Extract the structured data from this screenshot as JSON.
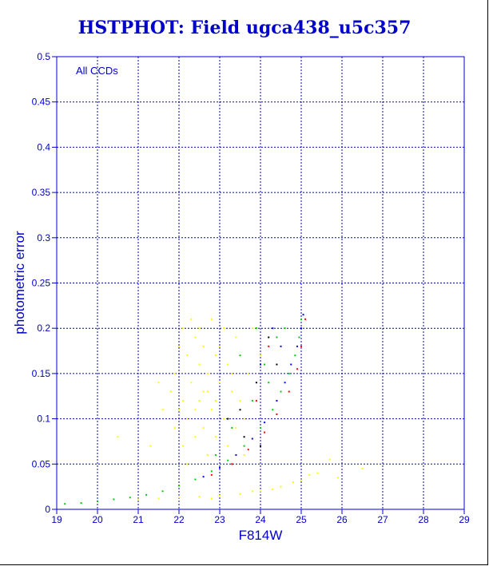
{
  "chart_data": {
    "type": "scatter",
    "title": "HSTPHOT: Field ugca438_u5c357",
    "xlabel": "F814W",
    "ylabel": "photometric error",
    "annotation": "All CCDs",
    "xlim": [
      19,
      29
    ],
    "ylim": [
      0,
      0.5
    ],
    "xticks": [
      "19",
      "20",
      "21",
      "22",
      "23",
      "24",
      "25",
      "26",
      "27",
      "28",
      "29"
    ],
    "yticks": [
      "0",
      "0.05",
      "0.1",
      "0.15",
      "0.2",
      "0.25",
      "0.3",
      "0.35",
      "0.4",
      "0.45",
      "0.5"
    ],
    "grid": true,
    "series": [
      {
        "color": "#ffff00",
        "points": [
          [
            22.1,
            0.2
          ],
          [
            22.4,
            0.19
          ],
          [
            22.8,
            0.21
          ],
          [
            23.1,
            0.2
          ],
          [
            23.4,
            0.19
          ],
          [
            22.6,
            0.18
          ],
          [
            22.2,
            0.17
          ],
          [
            22.9,
            0.17
          ],
          [
            23.2,
            0.16
          ],
          [
            22.5,
            0.16
          ],
          [
            21.9,
            0.15
          ],
          [
            22.7,
            0.15
          ],
          [
            23.0,
            0.14
          ],
          [
            22.3,
            0.14
          ],
          [
            22.6,
            0.13
          ],
          [
            23.3,
            0.13
          ],
          [
            21.8,
            0.13
          ],
          [
            22.1,
            0.12
          ],
          [
            22.9,
            0.12
          ],
          [
            23.5,
            0.12
          ],
          [
            22.4,
            0.11
          ],
          [
            22.8,
            0.11
          ],
          [
            21.6,
            0.11
          ],
          [
            23.1,
            0.1
          ],
          [
            22.2,
            0.1
          ],
          [
            22.6,
            0.09
          ],
          [
            23.4,
            0.09
          ],
          [
            21.9,
            0.09
          ],
          [
            22.9,
            0.08
          ],
          [
            22.4,
            0.08
          ],
          [
            23.2,
            0.07
          ],
          [
            22.1,
            0.07
          ],
          [
            22.7,
            0.06
          ],
          [
            23.6,
            0.1
          ],
          [
            23.7,
            0.15
          ],
          [
            21.5,
            0.14
          ],
          [
            21.3,
            0.07
          ],
          [
            20.5,
            0.08
          ],
          [
            24.0,
            0.17
          ],
          [
            23.8,
            0.2
          ],
          [
            22.5,
            0.2
          ],
          [
            22.0,
            0.18
          ],
          [
            23.0,
            0.18
          ],
          [
            22.3,
            0.21
          ],
          [
            22.7,
            0.13
          ],
          [
            23.3,
            0.15
          ],
          [
            22.0,
            0.11
          ],
          [
            22.5,
            0.12
          ],
          [
            23.6,
            0.06
          ],
          [
            22.2,
            0.05
          ],
          [
            21.0,
            0.011
          ],
          [
            21.5,
            0.012
          ],
          [
            22.0,
            0.013
          ],
          [
            22.5,
            0.014
          ],
          [
            23.0,
            0.015
          ],
          [
            23.5,
            0.017
          ],
          [
            24.0,
            0.02
          ],
          [
            24.5,
            0.025
          ],
          [
            25.0,
            0.032
          ],
          [
            25.4,
            0.04
          ],
          [
            25.7,
            0.055
          ],
          [
            22.8,
            0.012
          ],
          [
            23.8,
            0.02
          ],
          [
            24.3,
            0.022
          ],
          [
            24.8,
            0.03
          ],
          [
            25.2,
            0.038
          ],
          [
            26.5,
            0.045
          ],
          [
            25.9,
            0.035
          ]
        ]
      },
      {
        "color": "#00cc00",
        "points": [
          [
            19.2,
            0.006
          ],
          [
            19.6,
            0.007
          ],
          [
            20.0,
            0.009
          ],
          [
            20.4,
            0.011
          ],
          [
            20.8,
            0.013
          ],
          [
            21.2,
            0.016
          ],
          [
            21.6,
            0.02
          ],
          [
            22.0,
            0.026
          ],
          [
            22.4,
            0.033
          ],
          [
            22.8,
            0.042
          ],
          [
            23.2,
            0.054
          ],
          [
            23.6,
            0.07
          ],
          [
            24.0,
            0.09
          ],
          [
            24.3,
            0.11
          ],
          [
            24.5,
            0.13
          ],
          [
            24.7,
            0.15
          ],
          [
            24.85,
            0.17
          ],
          [
            24.95,
            0.19
          ],
          [
            25.0,
            0.21
          ],
          [
            23.9,
            0.2
          ],
          [
            23.5,
            0.17
          ],
          [
            24.1,
            0.16
          ],
          [
            23.8,
            0.12
          ],
          [
            24.4,
            0.19
          ],
          [
            23.3,
            0.09
          ],
          [
            22.9,
            0.06
          ],
          [
            24.6,
            0.2
          ],
          [
            24.2,
            0.14
          ]
        ]
      },
      {
        "color": "#0000ff",
        "points": [
          [
            22.6,
            0.036
          ],
          [
            23.0,
            0.046
          ],
          [
            23.4,
            0.06
          ],
          [
            23.8,
            0.078
          ],
          [
            24.1,
            0.096
          ],
          [
            24.4,
            0.12
          ],
          [
            24.6,
            0.14
          ],
          [
            24.75,
            0.16
          ],
          [
            24.9,
            0.18
          ],
          [
            25.0,
            0.2
          ],
          [
            25.05,
            0.215
          ],
          [
            24.3,
            0.2
          ],
          [
            24.0,
            0.16
          ],
          [
            24.5,
            0.18
          ]
        ]
      },
      {
        "color": "#ff0000",
        "points": [
          [
            22.8,
            0.038
          ],
          [
            23.3,
            0.05
          ],
          [
            23.7,
            0.066
          ],
          [
            24.1,
            0.085
          ],
          [
            24.4,
            0.105
          ],
          [
            24.7,
            0.13
          ],
          [
            24.9,
            0.155
          ],
          [
            25.0,
            0.18
          ],
          [
            25.1,
            0.21
          ],
          [
            23.9,
            0.12
          ],
          [
            24.2,
            0.18
          ]
        ]
      },
      {
        "color": "#000000",
        "points": [
          [
            23.5,
            0.11
          ],
          [
            23.9,
            0.14
          ],
          [
            24.2,
            0.19
          ],
          [
            23.6,
            0.08
          ],
          [
            24.0,
            0.07
          ],
          [
            23.2,
            0.1
          ],
          [
            24.4,
            0.16
          ]
        ]
      }
    ]
  }
}
